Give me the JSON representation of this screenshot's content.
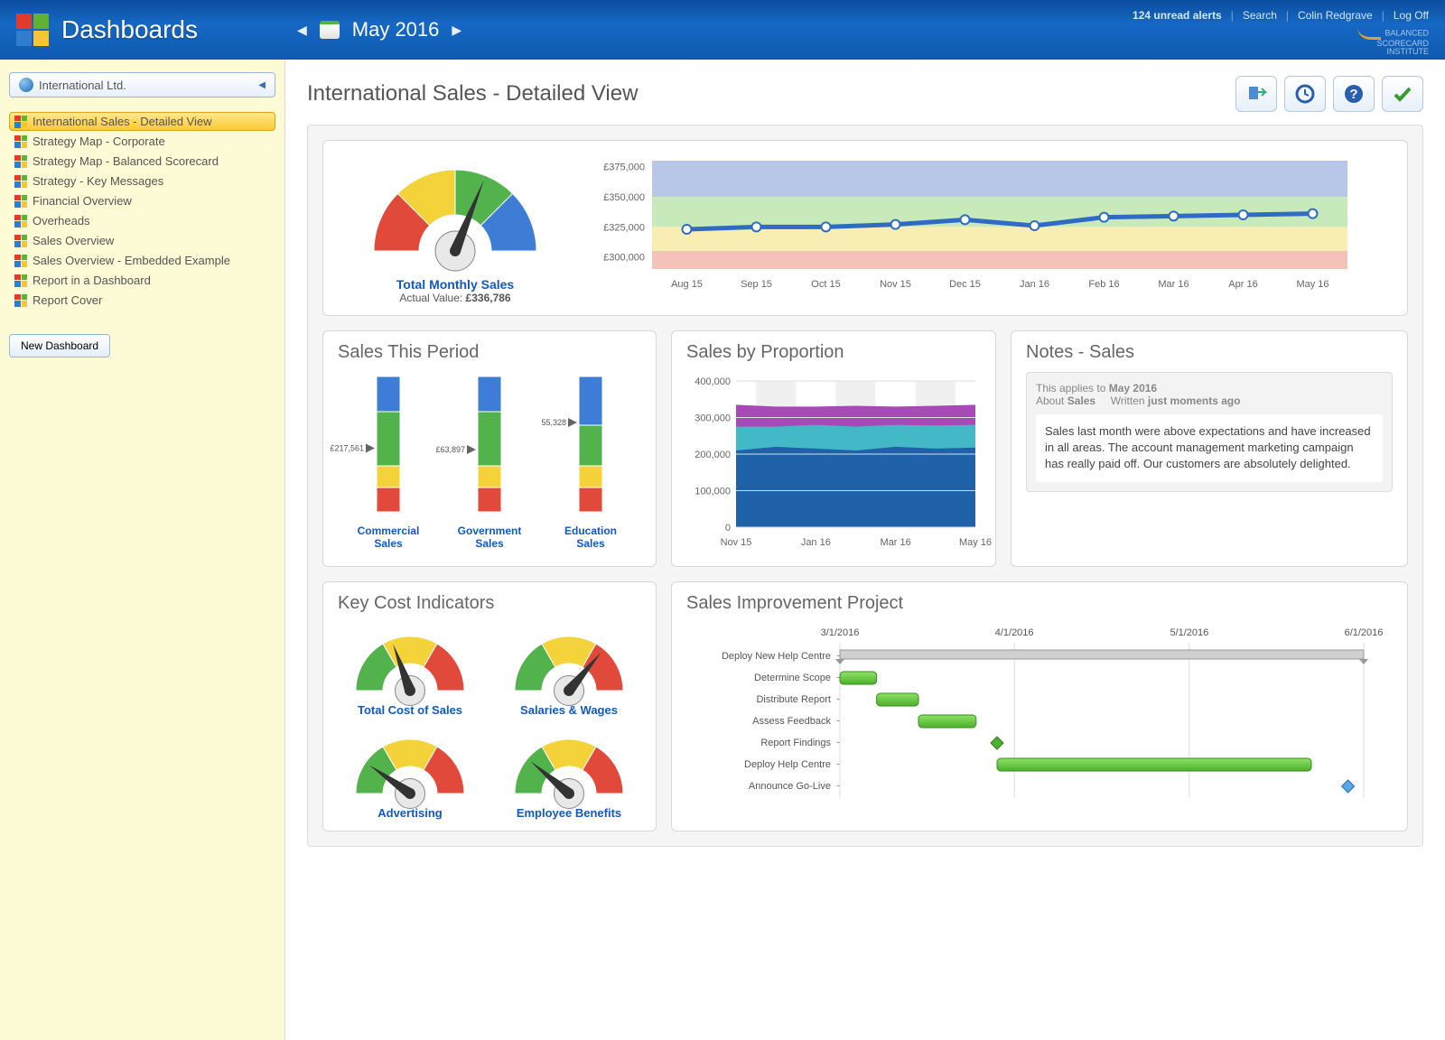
{
  "header": {
    "app_title": "Dashboards",
    "date_label": "May 2016",
    "alerts_link": "124 unread alerts",
    "search_link": "Search",
    "user_link": "Colin Redgrave",
    "logoff_link": "Log Off",
    "brand": "BALANCED\nSCORECARD\nINSTITUTE"
  },
  "sidebar": {
    "org_name": "International Ltd.",
    "new_dashboard_btn": "New Dashboard",
    "items": [
      {
        "label": "International Sales - Detailed View",
        "active": true
      },
      {
        "label": "Strategy Map - Corporate"
      },
      {
        "label": "Strategy Map - Balanced Scorecard"
      },
      {
        "label": "Strategy - Key Messages"
      },
      {
        "label": "Financial Overview"
      },
      {
        "label": "Overheads"
      },
      {
        "label": "Sales Overview"
      },
      {
        "label": "Sales Overview - Embedded Example"
      },
      {
        "label": "Report in a Dashboard"
      },
      {
        "label": "Report Cover"
      }
    ]
  },
  "page": {
    "title": "International Sales - Detailed View"
  },
  "main_gauge": {
    "title": "Total Monthly Sales",
    "sub_label": "Actual Value:",
    "value": "£336,786",
    "needle_angle_deg": 22,
    "segments": [
      {
        "start": -90,
        "end": -45,
        "color": "#e14a3a"
      },
      {
        "start": -45,
        "end": 0,
        "color": "#f4d33a"
      },
      {
        "start": 0,
        "end": 45,
        "color": "#52b24b"
      },
      {
        "start": 45,
        "end": 90,
        "color": "#3d7dd6"
      }
    ]
  },
  "line_chart": {
    "type": "line",
    "y_ticks": [
      "£375,000",
      "£350,000",
      "£325,000",
      "£300,000"
    ],
    "y_values": [
      375000,
      350000,
      325000,
      300000
    ],
    "x_labels": [
      "Aug 15",
      "Sep 15",
      "Oct 15",
      "Nov 15",
      "Dec 15",
      "Jan 16",
      "Feb 16",
      "Mar 16",
      "Apr 16",
      "May 16"
    ],
    "values": [
      323000,
      325000,
      325000,
      327000,
      331000,
      326000,
      333000,
      334000,
      335000,
      336000
    ],
    "bands": [
      {
        "from": 350000,
        "to": 380000,
        "color": "#a0b4e0"
      },
      {
        "from": 325000,
        "to": 350000,
        "color": "#b6e3a4"
      },
      {
        "from": 305000,
        "to": 325000,
        "color": "#f5e79a"
      },
      {
        "from": 290000,
        "to": 305000,
        "color": "#f1aea3"
      }
    ],
    "line_color": "#2f6bc4",
    "marker_fill": "#ffffff",
    "marker_stroke": "#2f6bc4"
  },
  "sales_period": {
    "title": "Sales This Period",
    "bars": [
      {
        "label": "Commercial Sales",
        "value_label": "£217,561",
        "pointer_pct": 0.47,
        "segments": [
          0.18,
          0.16,
          0.4,
          0.26
        ],
        "seg_colors": [
          "#e14a3a",
          "#f4d33a",
          "#52b24b",
          "#3d7dd6"
        ]
      },
      {
        "label": "Government Sales",
        "value_label": "£63,897",
        "pointer_pct": 0.46,
        "segments": [
          0.18,
          0.16,
          0.4,
          0.26
        ],
        "seg_colors": [
          "#e14a3a",
          "#f4d33a",
          "#52b24b",
          "#3d7dd6"
        ]
      },
      {
        "label": "Education Sales",
        "value_label": "55,328",
        "pointer_pct": 0.66,
        "segments": [
          0.18,
          0.16,
          0.3,
          0.36
        ],
        "seg_colors": [
          "#e14a3a",
          "#f4d33a",
          "#52b24b",
          "#3d7dd6"
        ]
      }
    ]
  },
  "sales_prop": {
    "title": "Sales by Proportion",
    "type": "area",
    "y_ticks": [
      "400,000",
      "300,000",
      "200,000",
      "100,000",
      "0"
    ],
    "y_values": [
      400000,
      300000,
      200000,
      100000,
      0
    ],
    "x_labels": [
      "Nov 15",
      "Jan 16",
      "Mar 16",
      "May 16"
    ],
    "series": [
      {
        "color": "#1f5da8",
        "values": [
          210000,
          220000,
          215000,
          210000,
          220000,
          215000,
          218000
        ]
      },
      {
        "color": "#3dc0c7",
        "values": [
          275000,
          275000,
          280000,
          275000,
          280000,
          278000,
          280000
        ]
      },
      {
        "color": "#a23fb3",
        "values": [
          335000,
          330000,
          330000,
          332000,
          330000,
          332000,
          335000
        ]
      }
    ],
    "x_count": 7
  },
  "notes": {
    "title": "Notes - Sales",
    "meta_prefix": "This applies to ",
    "meta_period": "May 2016",
    "meta_about_label": "About ",
    "meta_about": "Sales",
    "meta_written_label": "Written ",
    "meta_written": "just moments ago",
    "body": "Sales last month were above expectations and have increased in all areas. The account management marketing campaign has really paid off. Our customers are absolutely delighted."
  },
  "kci": {
    "title": "Key Cost Indicators",
    "gauges": [
      {
        "label": "Total Cost of Sales",
        "needle_deg": -20,
        "segments": [
          {
            "start": -90,
            "end": -30,
            "color": "#52b24b"
          },
          {
            "start": -30,
            "end": 30,
            "color": "#f4d33a"
          },
          {
            "start": 30,
            "end": 90,
            "color": "#e14a3a"
          }
        ]
      },
      {
        "label": "Salaries & Wages",
        "needle_deg": 40,
        "segments": [
          {
            "start": -90,
            "end": -30,
            "color": "#52b24b"
          },
          {
            "start": -30,
            "end": 30,
            "color": "#f4d33a"
          },
          {
            "start": 30,
            "end": 90,
            "color": "#e14a3a"
          }
        ]
      },
      {
        "label": "Advertising",
        "needle_deg": -55,
        "segments": [
          {
            "start": -90,
            "end": -30,
            "color": "#52b24b"
          },
          {
            "start": -30,
            "end": 30,
            "color": "#f4d33a"
          },
          {
            "start": 30,
            "end": 90,
            "color": "#e14a3a"
          }
        ]
      },
      {
        "label": "Employee Benefits",
        "needle_deg": -50,
        "segments": [
          {
            "start": -90,
            "end": -30,
            "color": "#52b24b"
          },
          {
            "start": -30,
            "end": 30,
            "color": "#f4d33a"
          },
          {
            "start": 30,
            "end": 90,
            "color": "#e14a3a"
          }
        ]
      }
    ]
  },
  "gantt": {
    "title": "Sales Improvement Project",
    "dates": [
      "3/1/2016",
      "4/1/2016",
      "5/1/2016",
      "6/1/2016"
    ],
    "date_x": [
      0,
      0.333,
      0.667,
      1.0
    ],
    "rows": [
      {
        "label": "Deploy New Help Centre",
        "start": 0.0,
        "end": 1.0,
        "type": "summary"
      },
      {
        "label": "Determine Scope",
        "start": 0.0,
        "end": 0.07,
        "type": "bar"
      },
      {
        "label": "Distribute Report",
        "start": 0.07,
        "end": 0.15,
        "type": "bar"
      },
      {
        "label": "Assess Feedback",
        "start": 0.15,
        "end": 0.26,
        "type": "bar"
      },
      {
        "label": "Report Findings",
        "start": 0.3,
        "end": 0.3,
        "type": "milestone"
      },
      {
        "label": "Deploy Help Centre",
        "start": 0.3,
        "end": 0.9,
        "type": "bar"
      },
      {
        "label": "Announce Go-Live",
        "start": 0.97,
        "end": 0.97,
        "type": "milestone2"
      }
    ],
    "bar_color": "#5fc33a",
    "bar_border": "#3a8d1f",
    "summary_color": "#d0d0d0"
  }
}
